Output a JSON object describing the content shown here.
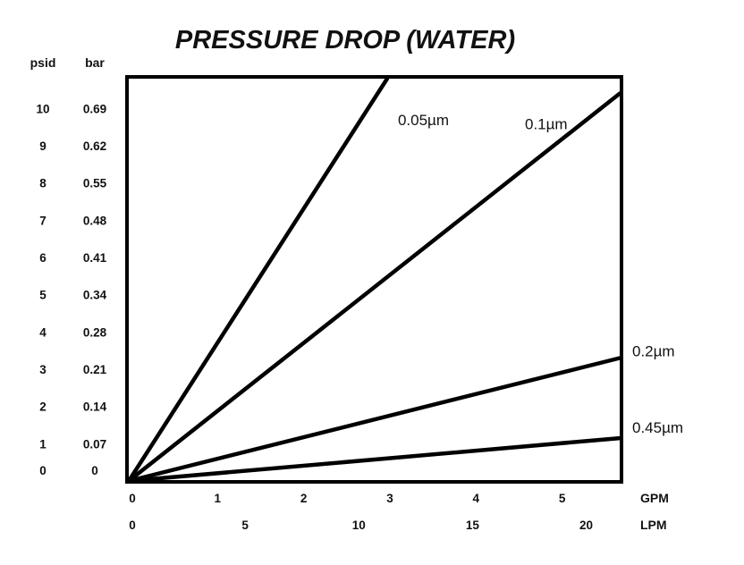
{
  "chart_data": {
    "type": "line",
    "title": "PRESSURE DROP (WATER)",
    "y_units": {
      "primary": "psid",
      "secondary": "bar"
    },
    "x_units": {
      "primary": "GPM",
      "secondary": "LPM"
    },
    "ylim": [
      0,
      10.8
    ],
    "xlim": [
      0,
      5.7
    ],
    "y_ticks_psid": [
      "0",
      "1",
      "2",
      "3",
      "4",
      "5",
      "6",
      "7",
      "8",
      "9",
      "10"
    ],
    "y_ticks_bar": [
      "0",
      "0.07",
      "0.14",
      "0.21",
      "0.28",
      "0.34",
      "0.41",
      "0.48",
      "0.55",
      "0.62",
      "0.69"
    ],
    "x_ticks_gpm": [
      "0",
      "1",
      "2",
      "3",
      "4",
      "5"
    ],
    "x_ticks_lpm": [
      {
        "label": "0",
        "gpm": 0
      },
      {
        "label": "5",
        "gpm": 1.32
      },
      {
        "label": "10",
        "gpm": 2.64
      },
      {
        "label": "15",
        "gpm": 3.96
      },
      {
        "label": "20",
        "gpm": 5.28
      }
    ],
    "series": [
      {
        "name": "0.05µm",
        "x": [
          0,
          3.0
        ],
        "y": [
          0,
          10.8
        ]
      },
      {
        "name": "0.1µm",
        "x": [
          0,
          5.7
        ],
        "y": [
          0,
          10.4
        ]
      },
      {
        "name": "0.2µm",
        "x": [
          0,
          5.7
        ],
        "y": [
          0,
          3.3
        ]
      },
      {
        "name": "0.45µm",
        "x": [
          0,
          5.7
        ],
        "y": [
          0,
          1.15
        ]
      }
    ],
    "grid": false,
    "legend": "inline labels at line ends"
  }
}
